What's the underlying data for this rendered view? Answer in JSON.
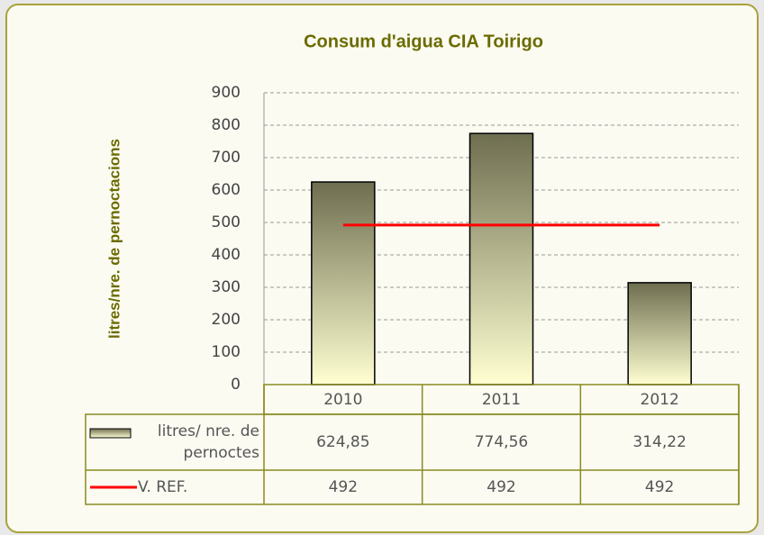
{
  "chart_data": {
    "type": "bar",
    "title": "Consum d'aigua CIA Toirigo",
    "y_label": "litres/nre. de pernoctacions",
    "categories": [
      "2010",
      "2011",
      "2012"
    ],
    "series": [
      {
        "name": "litres/ nre. de pernoctes",
        "type": "bar",
        "color": "#6e6e50",
        "values": [
          624.85,
          774.56,
          314.22
        ],
        "value_labels": [
          "624,85",
          "774,56",
          "314,22"
        ]
      },
      {
        "name": "V. REF.",
        "type": "line",
        "color": "#ff0000",
        "values": [
          492,
          492,
          492
        ]
      }
    ],
    "ylim": [
      0,
      900
    ],
    "yticks": [
      0,
      100,
      200,
      300,
      400,
      500,
      600,
      700,
      800,
      900
    ],
    "grid": true,
    "data_table": true
  }
}
